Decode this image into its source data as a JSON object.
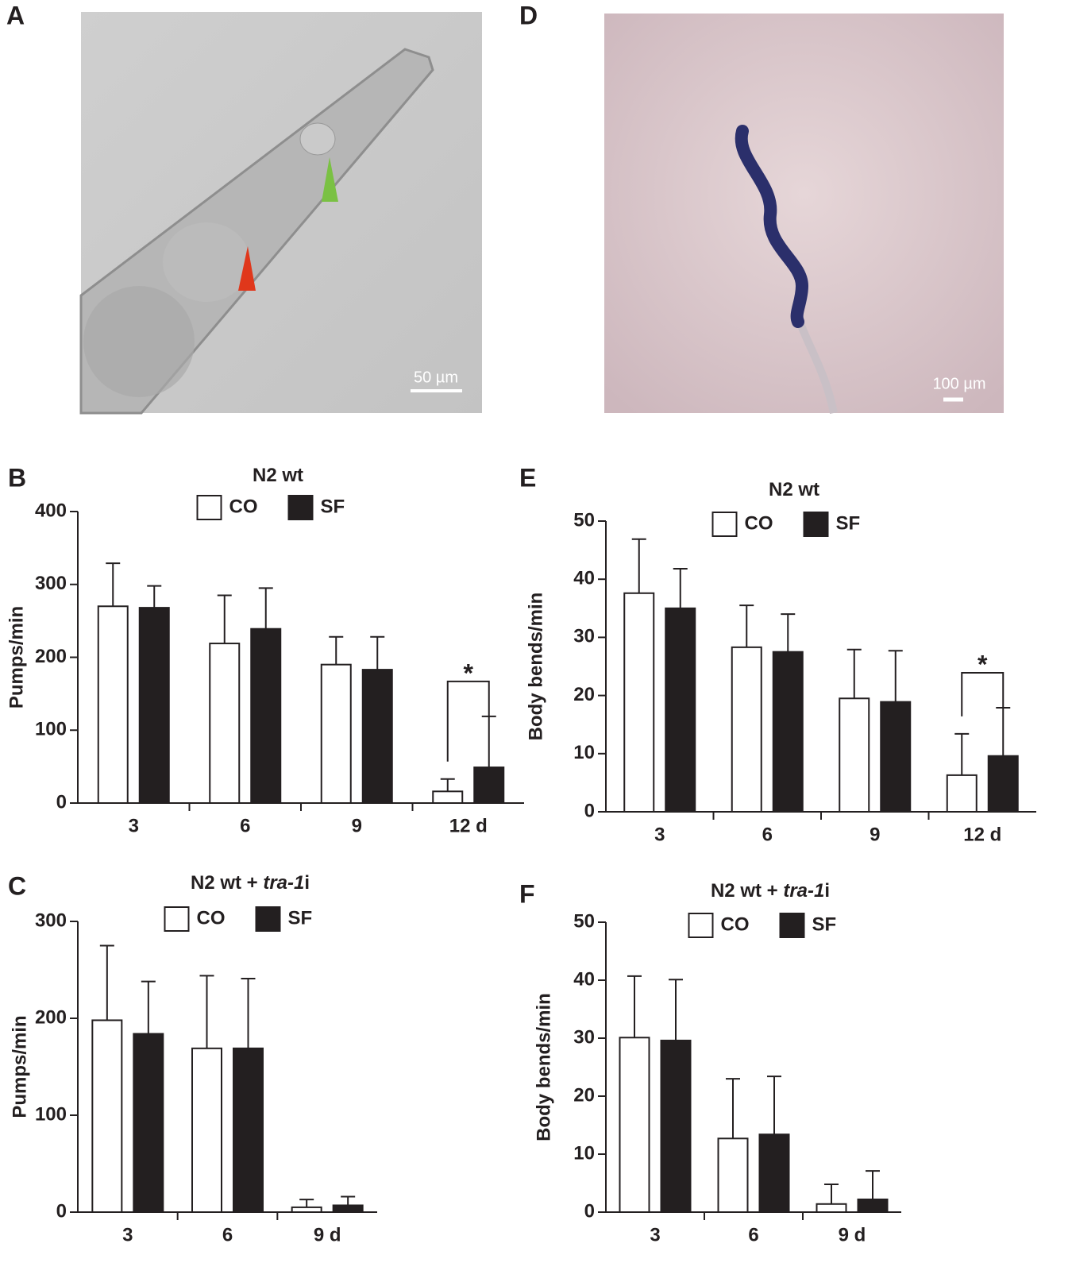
{
  "images": [
    {
      "panel": "A",
      "scale_bar": "50 µm"
    },
    {
      "panel": "D",
      "scale_bar": "100 µm"
    }
  ],
  "chart_data": [
    {
      "type": "bar",
      "panel": "B",
      "title": [
        {
          "text": "N2 wt"
        }
      ],
      "y_label": "Pumps/min",
      "categories": [
        "3",
        "6",
        "9",
        "12 d"
      ],
      "series": [
        {
          "name": "CO",
          "color": "#ffffff",
          "values": [
            270,
            219,
            190,
            16
          ],
          "errors": [
            59,
            66,
            38,
            17
          ]
        },
        {
          "name": "SF",
          "color": "#231f20",
          "values": [
            268,
            239,
            183,
            49
          ],
          "errors": [
            30,
            56,
            45,
            70
          ]
        }
      ],
      "ylim": [
        0,
        400
      ],
      "yticks": [
        0,
        100,
        200,
        300,
        400
      ],
      "annotations": [
        {
          "text": "*",
          "category": "12 d"
        }
      ]
    },
    {
      "type": "bar",
      "panel": "E",
      "title": [
        {
          "text": "N2 wt"
        }
      ],
      "y_label": "Body bends/min",
      "categories": [
        "3",
        "6",
        "9",
        "12 d"
      ],
      "series": [
        {
          "name": "CO",
          "color": "#ffffff",
          "values": [
            37.6,
            28.3,
            19.5,
            6.3
          ],
          "errors": [
            9.3,
            7.2,
            8.4,
            7.1
          ]
        },
        {
          "name": "SF",
          "color": "#231f20",
          "values": [
            35,
            27.5,
            18.9,
            9.6
          ],
          "errors": [
            6.8,
            6.5,
            8.8,
            8.3
          ]
        }
      ],
      "ylim": [
        0,
        50
      ],
      "yticks": [
        0,
        10,
        20,
        30,
        40,
        50
      ],
      "annotations": [
        {
          "text": "*",
          "category": "12 d"
        }
      ]
    },
    {
      "type": "bar",
      "panel": "C",
      "title": [
        {
          "text": "N2 wt + "
        },
        {
          "text": "tra-1",
          "italic": true
        },
        {
          "text": "i"
        }
      ],
      "y_label": "Pumps/min",
      "categories": [
        "3",
        "6",
        "9 d"
      ],
      "series": [
        {
          "name": "CO",
          "color": "#ffffff",
          "values": [
            198,
            169,
            5
          ],
          "errors": [
            77,
            75,
            8
          ]
        },
        {
          "name": "SF",
          "color": "#231f20",
          "values": [
            184,
            169,
            7
          ],
          "errors": [
            54,
            72,
            9
          ]
        }
      ],
      "ylim": [
        0,
        300
      ],
      "yticks": [
        0,
        100,
        200,
        300
      ]
    },
    {
      "type": "bar",
      "panel": "F",
      "title": [
        {
          "text": "N2 wt + "
        },
        {
          "text": "tra-1",
          "italic": true
        },
        {
          "text": "i"
        }
      ],
      "y_label": "Body bends/min",
      "categories": [
        "3",
        "6",
        "9 d"
      ],
      "series": [
        {
          "name": "CO",
          "color": "#ffffff",
          "values": [
            30.1,
            12.7,
            1.4
          ],
          "errors": [
            10.6,
            10.3,
            3.4
          ]
        },
        {
          "name": "SF",
          "color": "#231f20",
          "values": [
            29.6,
            13.4,
            2.2
          ],
          "errors": [
            10.5,
            10,
            4.9
          ]
        }
      ],
      "ylim": [
        0,
        50
      ],
      "yticks": [
        0,
        10,
        20,
        30,
        40,
        50
      ]
    }
  ]
}
